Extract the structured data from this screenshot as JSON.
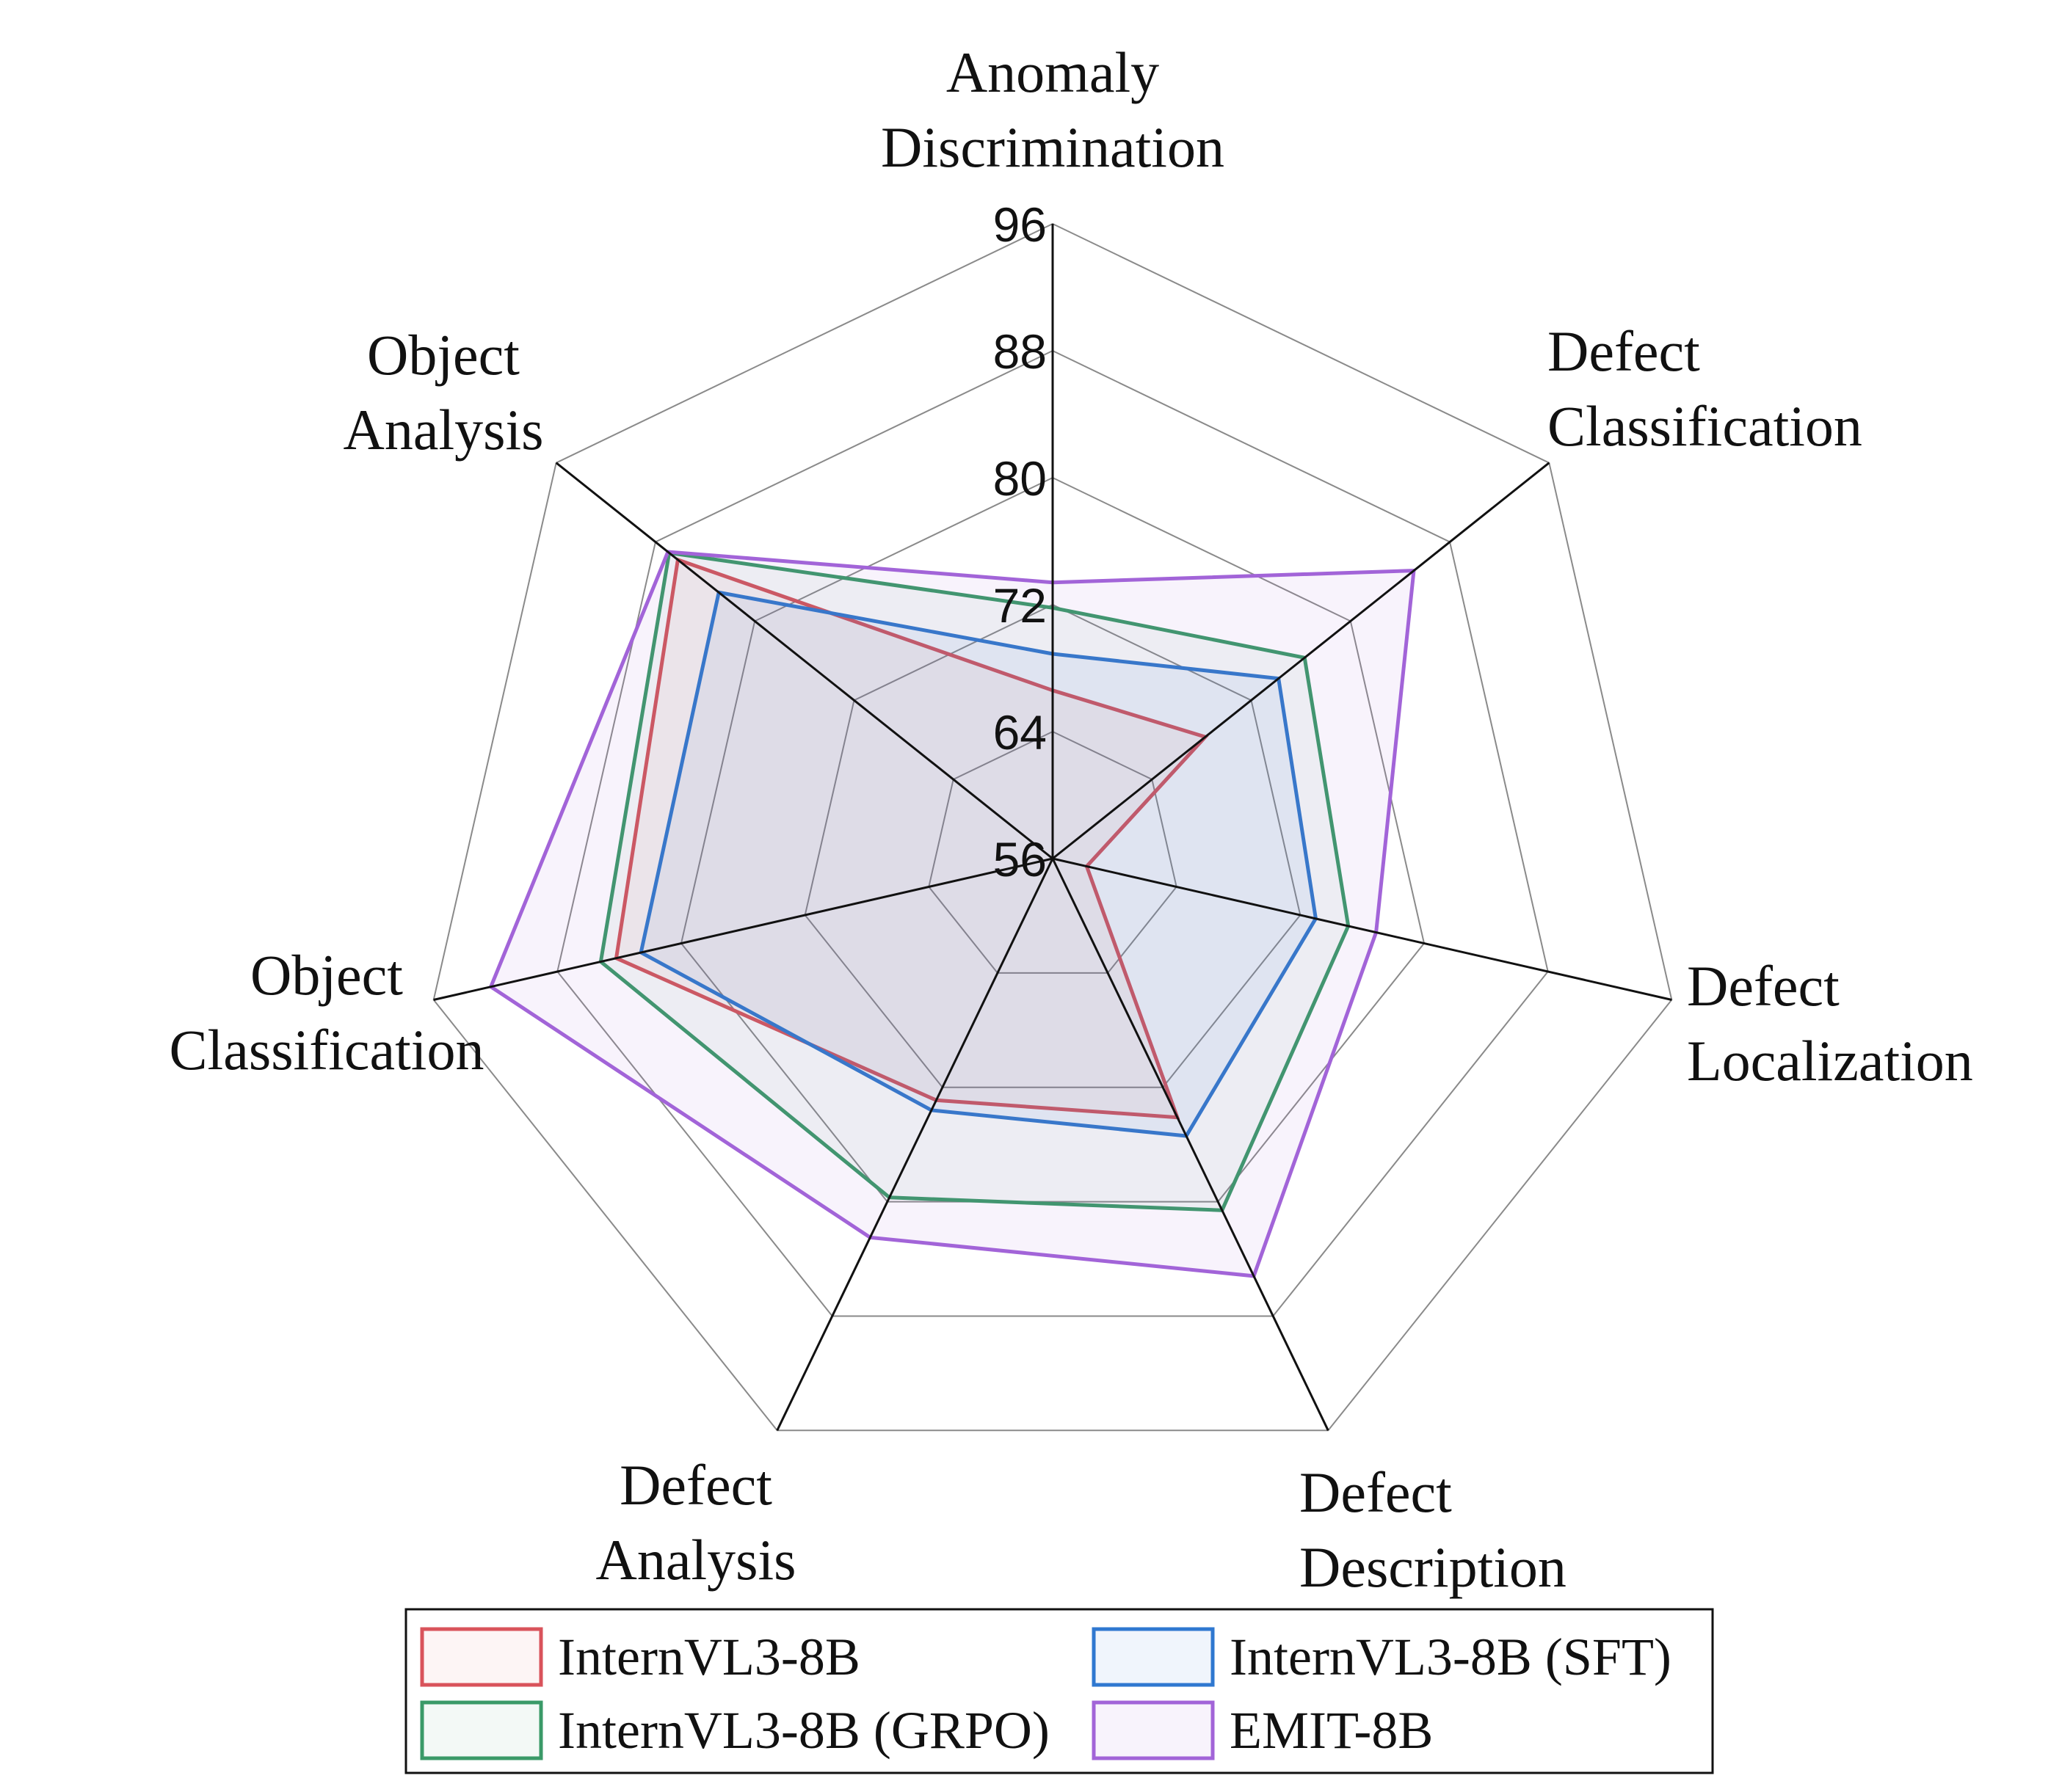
{
  "chart_data": {
    "type": "radar",
    "axes": [
      [
        "Anomaly",
        "Discrimination"
      ],
      [
        "Defect",
        "Classification"
      ],
      [
        "Defect",
        "Localization"
      ],
      [
        "Defect",
        "Description"
      ],
      [
        "Defect",
        "Analysis"
      ],
      [
        "Object",
        "Classification"
      ],
      [
        "Object",
        "Analysis"
      ]
    ],
    "range": [
      56,
      96
    ],
    "ticks": [
      56,
      64,
      72,
      80,
      88,
      96
    ],
    "grid": true,
    "legend_position": "bottom",
    "series": [
      {
        "name": "InternVL3-8B",
        "color": "#d9535b",
        "fill": "rgba(217,83,91,0.06)",
        "values": [
          66.6,
          68.3,
          58.2,
          74.1,
          72.9,
          84.2,
          86.2
        ]
      },
      {
        "name": "InternVL3-8B (SFT)",
        "color": "#2f78d0",
        "fill": "rgba(47,120,208,0.07)",
        "values": [
          68.9,
          74.2,
          73.0,
          75.4,
          73.6,
          82.6,
          82.9
        ]
      },
      {
        "name": "InternVL3-8B (GRPO)",
        "color": "#3a9a68",
        "fill": "rgba(58,154,104,0.06)",
        "values": [
          71.8,
          76.3,
          75.1,
          80.6,
          79.7,
          85.2,
          86.9
        ]
      },
      {
        "name": "EMIT-8B",
        "color": "#a264d8",
        "fill": "rgba(162,100,216,0.08)",
        "values": [
          73.4,
          85.1,
          76.9,
          85.2,
          82.5,
          92.3,
          87.0
        ]
      }
    ]
  }
}
